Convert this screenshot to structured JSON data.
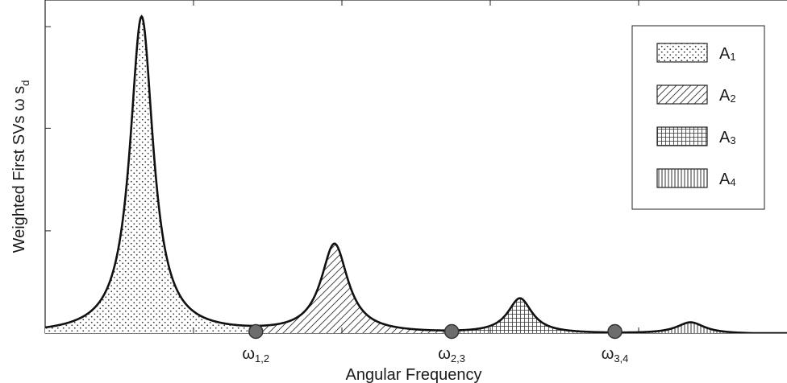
{
  "chart_data": {
    "type": "area",
    "title": "",
    "xlabel": "Angular Frequency",
    "ylabel": "Weighted First SVs  ω s",
    "ylabel_subscript": "d",
    "xlim": [
      0,
      10
    ],
    "ylim": [
      0,
      1.05
    ],
    "grid": false,
    "legend_position": "top-right",
    "peaks": [
      {
        "center": 1.3,
        "height": 1.0,
        "width": 0.19
      },
      {
        "center": 3.9,
        "height": 0.28,
        "width": 0.22
      },
      {
        "center": 6.4,
        "height": 0.11,
        "width": 0.2
      },
      {
        "center": 8.7,
        "height": 0.036,
        "width": 0.23
      }
    ],
    "baseline": 0.004,
    "regions": [
      {
        "key": "A1",
        "base": "A",
        "sub": "1",
        "pattern": "dots",
        "x_from": 0,
        "x_to": 2.84
      },
      {
        "key": "A2",
        "base": "A",
        "sub": "2",
        "pattern": "hatch",
        "x_from": 2.84,
        "x_to": 5.48
      },
      {
        "key": "A3",
        "base": "A",
        "sub": "3",
        "pattern": "grid",
        "x_from": 5.48,
        "x_to": 7.68
      },
      {
        "key": "A4",
        "base": "A",
        "sub": "4",
        "pattern": "vertical",
        "x_from": 7.68,
        "x_to": 10
      }
    ],
    "boundary_markers": [
      {
        "x": 2.84,
        "base": "ω",
        "sub": "1,2"
      },
      {
        "x": 5.48,
        "base": "ω",
        "sub": "2,3"
      },
      {
        "x": 7.68,
        "base": "ω",
        "sub": "3,4"
      }
    ],
    "colors": {
      "curve": "#111111",
      "marker_fill": "#6d6d6d",
      "marker_stroke": "#333333",
      "frame": "#222222"
    }
  }
}
